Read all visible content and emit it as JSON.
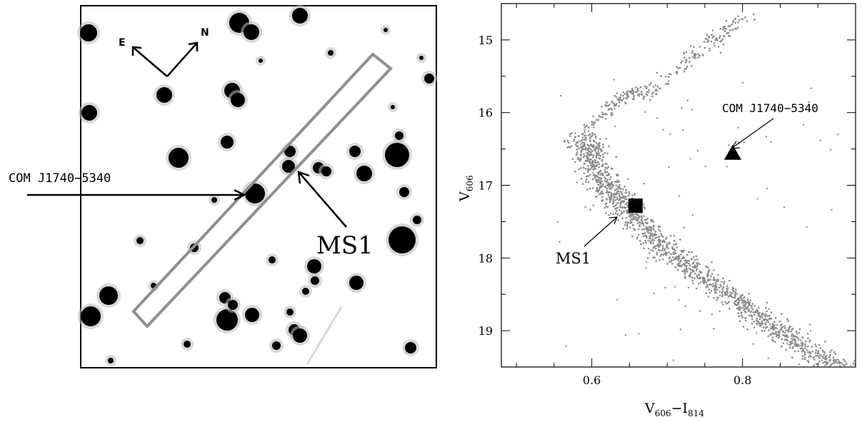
{
  "finder_chart": {
    "compass_east": "E",
    "compass_north": "N",
    "label_com": "COM J1740−5340",
    "label_ms1": "MS1"
  },
  "chart_data": {
    "type": "scatter",
    "title": "",
    "xlabel_main": "V",
    "xlabel_sub1": "606",
    "xlabel_dash": "−I",
    "xlabel_sub2": "814",
    "ylabel_main": "V",
    "ylabel_sub": "606",
    "xlim": [
      0.48,
      0.95
    ],
    "ylim": [
      19.5,
      14.5
    ],
    "y_inverted": true,
    "x_ticks": [
      0.6,
      0.8
    ],
    "x_tick_labels": [
      "0.6",
      "0.8"
    ],
    "y_ticks": [
      15,
      16,
      17,
      18,
      19
    ],
    "y_tick_labels": [
      "15",
      "16",
      "17",
      "18",
      "19"
    ],
    "grid": false,
    "series": [
      {
        "marker": "dot",
        "color": "#8a8a8a",
        "description_points": [
          [
            0.59,
            16.3
          ],
          [
            0.6,
            16.7
          ],
          [
            0.62,
            17.0
          ],
          [
            0.64,
            17.3
          ],
          [
            0.67,
            17.6
          ],
          [
            0.7,
            17.9
          ],
          [
            0.74,
            18.2
          ],
          [
            0.78,
            18.5
          ],
          [
            0.82,
            18.8
          ],
          [
            0.86,
            19.1
          ],
          [
            0.9,
            19.35
          ],
          [
            0.93,
            19.5
          ]
        ]
      },
      {
        "name": "MS1",
        "marker": "square",
        "color": "#000000",
        "points": [
          [
            0.658,
            17.28
          ]
        ]
      },
      {
        "name": "COM J1740-5340",
        "marker": "triangle",
        "color": "#000000",
        "points": [
          [
            0.787,
            16.55
          ]
        ]
      }
    ],
    "annotations": [
      {
        "text": "COM J1740−5340",
        "x": 0.787,
        "y": 16.55
      },
      {
        "text": "MS1",
        "x": 0.658,
        "y": 17.28
      }
    ]
  }
}
